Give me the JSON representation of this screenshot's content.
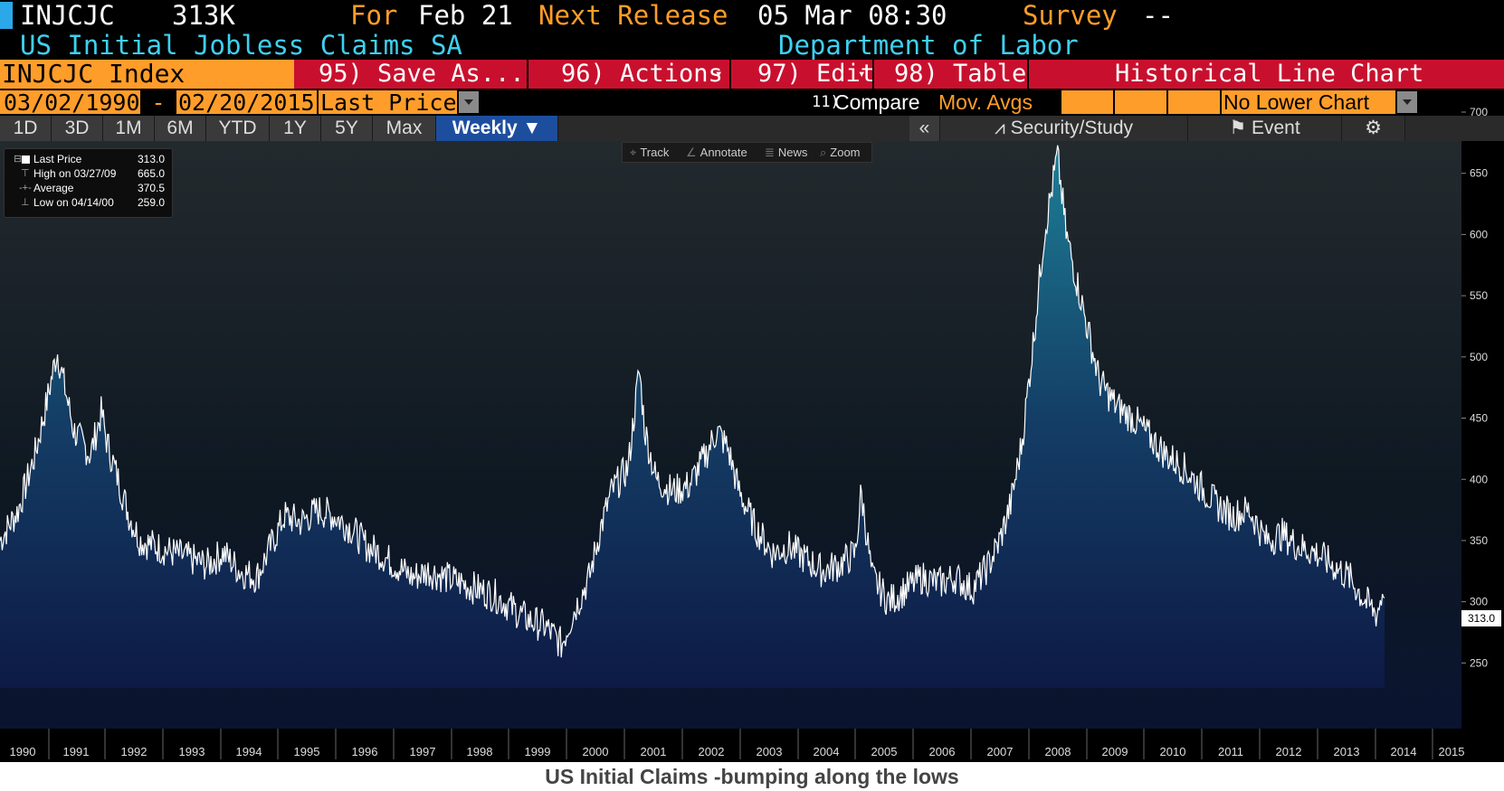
{
  "header": {
    "ticker": "INJCJC",
    "value": "313K",
    "for_label": "For",
    "for_date": "Feb 21",
    "next_release_label": "Next Release",
    "next_release_value": "05 Mar 08:30",
    "survey_label": "Survey",
    "survey_value": "--",
    "description": "US Initial Jobless Claims SA",
    "source": "Department of Labor"
  },
  "menu": {
    "index_label": "INJCJC Index",
    "save_as": "95) Save As...",
    "actions": "96) Actions",
    "edit": "97) Edit",
    "table": "98) Table",
    "chart_type": "Historical Line Chart"
  },
  "range": {
    "start_date": "03/02/1990",
    "dash": "-",
    "end_date": "02/20/2015",
    "field": "Last Price",
    "compare_num": "11)",
    "compare_label": "Compare",
    "mov_avgs": "Mov. Avgs",
    "lower_chart": "No Lower Chart"
  },
  "period_tabs": [
    "1D",
    "3D",
    "1M",
    "6M",
    "YTD",
    "1Y",
    "5Y",
    "Max",
    "Weekly ▼"
  ],
  "right_tabs": {
    "collapse": "«",
    "security_study": "Security/Study",
    "event": "Event"
  },
  "tools": [
    "Track",
    "Annotate",
    "News",
    "Zoom"
  ],
  "legend": [
    {
      "label": "Last Price",
      "value": "313.0"
    },
    {
      "label": "High on 03/27/09",
      "value": "665.0"
    },
    {
      "label": "Average",
      "value": "370.5"
    },
    {
      "label": "Low on 04/14/00",
      "value": "259.0"
    }
  ],
  "last_value_tag": "313.0",
  "caption": "US Initial Claims -bumping along the lows",
  "colors": {
    "orange": "#ff9d2a",
    "red_bar": "#c8102e",
    "cyan_text": "#3fd0f0",
    "area_top": "#1d7f96",
    "area_bottom": "#0d1a45",
    "line": "#ffffff"
  },
  "chart_data": {
    "type": "area",
    "title": "",
    "xlabel": "",
    "ylabel": "",
    "xlim": [
      1990.17,
      2015.14
    ],
    "ylim": [
      220,
      700
    ],
    "y_ticks": [
      250,
      300,
      350,
      400,
      450,
      500,
      550,
      600,
      650,
      700
    ],
    "x_ticks": [
      "1990",
      "1991",
      "1992",
      "1993",
      "1994",
      "1995",
      "1996",
      "1997",
      "1998",
      "1999",
      "2000",
      "2001",
      "2002",
      "2003",
      "2004",
      "2005",
      "2006",
      "2007",
      "2008",
      "2009",
      "2010",
      "2011",
      "2012",
      "2013",
      "2014",
      "2015"
    ],
    "grid": false,
    "legend_position": "top-left",
    "series": [
      {
        "x": [
          1990.17,
          1990.5,
          1990.8,
          1991.0,
          1991.2,
          1991.5,
          1991.8,
          1992.0,
          1992.1,
          1992.3,
          1992.5,
          1992.7,
          1993.0,
          1993.3,
          1993.6,
          1993.9,
          1994.2,
          1994.5,
          1994.8,
          1995.0,
          1995.3,
          1995.6,
          1995.9,
          1996.2,
          1996.5,
          1996.8,
          1997.0,
          1997.3,
          1997.6,
          1997.9,
          1998.2,
          1998.5,
          1998.8,
          1999.1,
          1999.4,
          1999.7,
          2000.0,
          2000.3,
          2000.5,
          2000.8,
          2001.0,
          2001.2,
          2001.5,
          2001.7,
          2001.8,
          2002.0,
          2002.3,
          2002.6,
          2002.9,
          2003.1,
          2003.3,
          2003.5,
          2003.8,
          2004.1,
          2004.4,
          2004.7,
          2005.0,
          2005.3,
          2005.6,
          2005.7,
          2005.9,
          2006.2,
          2006.5,
          2006.8,
          2007.1,
          2007.4,
          2007.7,
          2008.0,
          2008.2,
          2008.4,
          2008.6,
          2008.8,
          2009.0,
          2009.15,
          2009.24,
          2009.4,
          2009.6,
          2009.8,
          2010.0,
          2010.3,
          2010.6,
          2010.9,
          2011.2,
          2011.5,
          2011.8,
          2012.1,
          2012.4,
          2012.7,
          2013.0,
          2013.3,
          2013.6,
          2013.9,
          2014.2,
          2014.5,
          2014.8,
          2015.0,
          2015.14
        ],
        "values": [
          350,
          375,
          420,
          460,
          505,
          440,
          420,
          455,
          430,
          400,
          370,
          350,
          345,
          340,
          335,
          330,
          340,
          325,
          320,
          340,
          370,
          365,
          375,
          370,
          360,
          345,
          340,
          330,
          320,
          325,
          320,
          315,
          310,
          305,
          295,
          285,
          280,
          265,
          290,
          320,
          360,
          390,
          410,
          490,
          440,
          400,
          390,
          395,
          420,
          440,
          425,
          390,
          360,
          340,
          345,
          335,
          325,
          330,
          340,
          390,
          320,
          300,
          310,
          320,
          315,
          320,
          310,
          330,
          350,
          380,
          430,
          510,
          600,
          640,
          665,
          600,
          560,
          520,
          480,
          460,
          450,
          435,
          420,
          410,
          395,
          380,
          370,
          375,
          350,
          355,
          345,
          340,
          330,
          320,
          300,
          290,
          313
        ]
      }
    ]
  }
}
